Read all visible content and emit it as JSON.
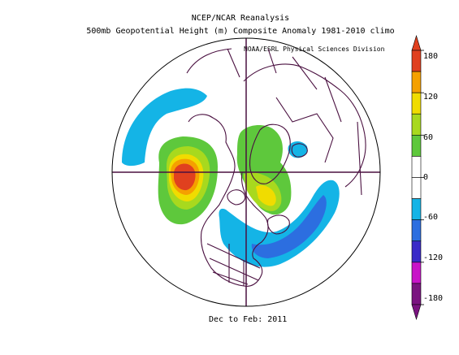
{
  "title_line1": "NCEP/NCAR Reanalysis",
  "title_line2": "500mb Geopotential Height (m) Composite Anomaly 1981-2010 climo",
  "credit": "NOAA/ESRL Physical Sciences Division",
  "date_label": "Dec to Feb: 2011",
  "colorbar": {
    "labels": [
      "180",
      "120",
      "60",
      "0",
      "-60",
      "-120",
      "-180"
    ],
    "bins": [
      {
        "range": "150-180",
        "color": "#e0401f"
      },
      {
        "range": "120-150",
        "color": "#f5a000"
      },
      {
        "range": "90-120",
        "color": "#f0dc00"
      },
      {
        "range": "60-90",
        "color": "#a8d91e"
      },
      {
        "range": "30-60",
        "color": "#5ec83c"
      },
      {
        "range": "0-30",
        "color": "#ffffff"
      },
      {
        "range": "-30-0",
        "color": "#ffffff"
      },
      {
        "range": "-60--30",
        "color": "#14b4e6"
      },
      {
        "range": "-90--60",
        "color": "#2c6ee0"
      },
      {
        "range": "-120--90",
        "color": "#3a2ac8"
      },
      {
        "range": "-150--120",
        "color": "#c814c8"
      },
      {
        "range": "-180--150",
        "color": "#7a1480"
      }
    ]
  }
}
